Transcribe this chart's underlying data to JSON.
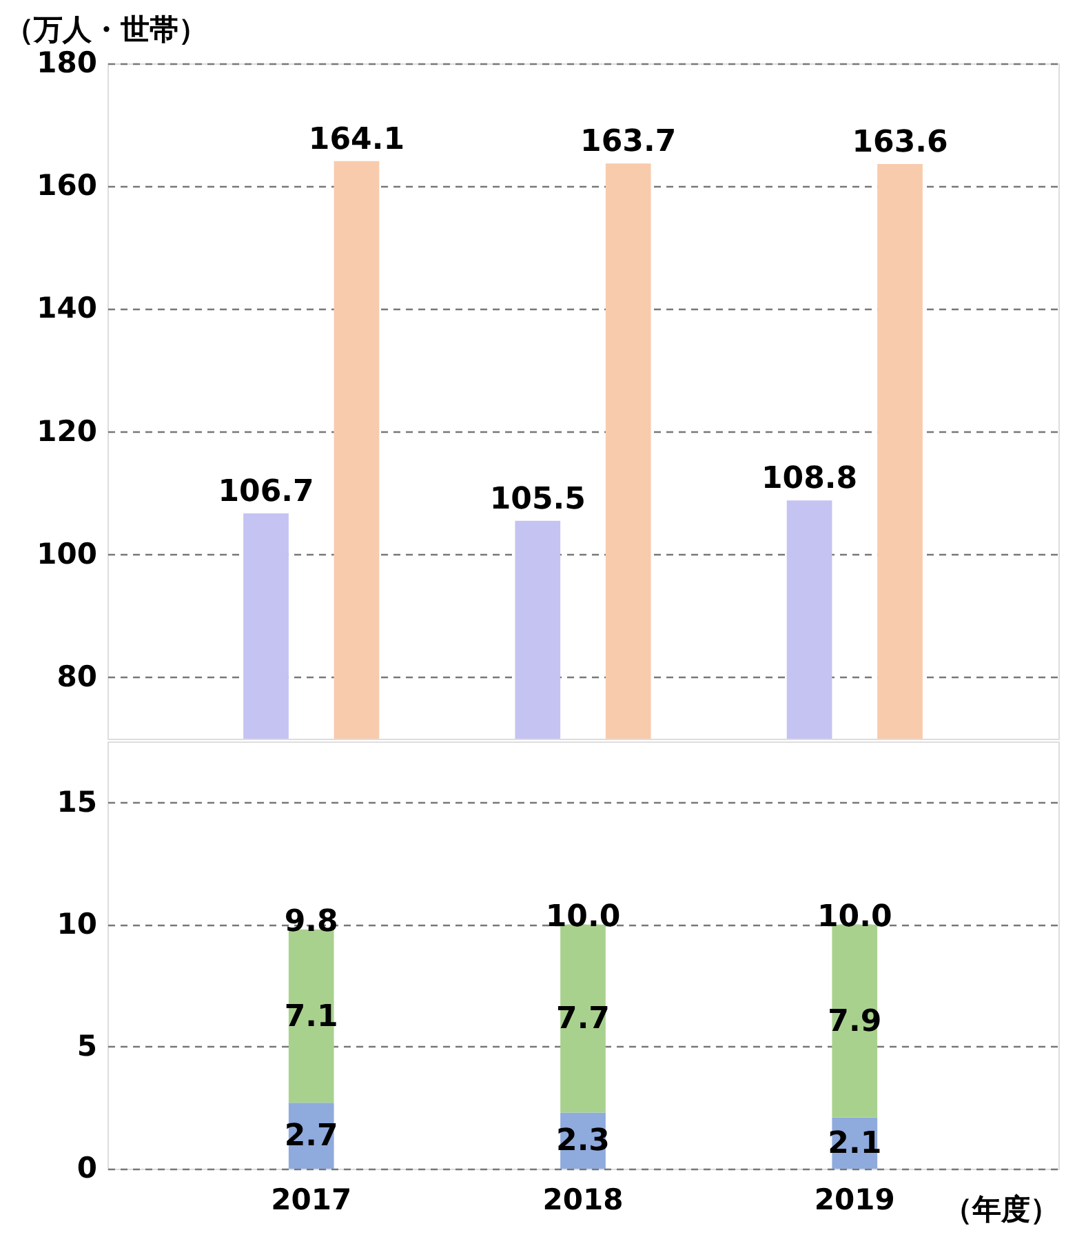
{
  "chart_data": [
    {
      "type": "bar",
      "ylabel": "（万人・世帯）",
      "categories": [
        "2017",
        "2018",
        "2019"
      ],
      "series": [
        {
          "color": "#c5c3f2",
          "values": [
            106.7,
            105.5,
            108.8
          ],
          "value_labels": [
            "106.7",
            "105.5",
            "108.8"
          ]
        },
        {
          "values": [
            null,
            null,
            null
          ]
        },
        {
          "color": "#f8cbad",
          "values": [
            164.1,
            163.7,
            163.6
          ],
          "value_labels": [
            "164.1",
            "163.7",
            "163.6"
          ]
        }
      ],
      "ylim": [
        70,
        180
      ],
      "yticks": [
        80,
        100,
        120,
        140,
        160,
        180
      ],
      "grid": "y",
      "tick_labels": "y"
    },
    {
      "type": "bar",
      "xlabel": "（年度）",
      "categories": [
        "2017",
        "2018",
        "2019"
      ],
      "stacked": true,
      "series": [
        {
          "color": "#8faadc",
          "values": [
            2.7,
            2.3,
            2.1
          ],
          "value_labels": [
            "2.7",
            "2.3",
            "2.1"
          ]
        },
        {
          "color": "#a9d18e",
          "values": [
            7.1,
            7.7,
            7.9
          ],
          "value_labels": [
            "7.1",
            "7.7",
            "7.9"
          ]
        }
      ],
      "annotations": [
        "9.8",
        "10.0",
        "10.0"
      ],
      "ylim": [
        0,
        17.5
      ],
      "yticks": [
        0,
        5,
        10,
        15
      ],
      "grid": "y"
    }
  ]
}
